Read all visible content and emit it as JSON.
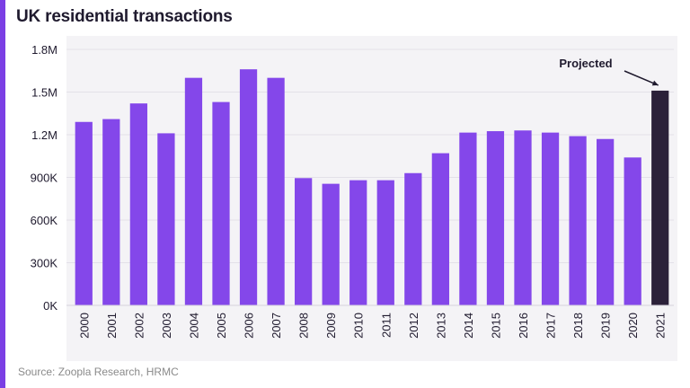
{
  "source": "Source: Zoopla Research, HRMC",
  "colors": {
    "accent": "#7b3fe4",
    "bar": "#8447ea",
    "projected_bar": "#2b2139",
    "text": "#1f1a2e",
    "plot_background": "#f4f3f6"
  },
  "chart_data": {
    "type": "bar",
    "title": "UK residential transactions",
    "xlabel": "",
    "ylabel": "",
    "ylim": [
      0,
      1800000
    ],
    "yticks": [
      0,
      300000,
      600000,
      900000,
      1200000,
      1500000,
      1800000
    ],
    "ytick_labels": [
      "0K",
      "300K",
      "600K",
      "900K",
      "1.2M",
      "1.5M",
      "1.8M"
    ],
    "categories": [
      "2000",
      "2001",
      "2002",
      "2003",
      "2004",
      "2005",
      "2006",
      "2007",
      "2008",
      "2009",
      "2010",
      "2011",
      "2012",
      "2013",
      "2014",
      "2015",
      "2016",
      "2017",
      "2018",
      "2019",
      "2020",
      "2021"
    ],
    "values": [
      1290000,
      1310000,
      1420000,
      1210000,
      1600000,
      1430000,
      1660000,
      1600000,
      895000,
      855000,
      880000,
      880000,
      930000,
      1070000,
      1215000,
      1225000,
      1230000,
      1215000,
      1190000,
      1170000,
      1040000,
      1510000
    ],
    "projected_index": 21,
    "annotation": {
      "text": "Projected",
      "target": "2021"
    },
    "grid": true,
    "legend": "none"
  }
}
